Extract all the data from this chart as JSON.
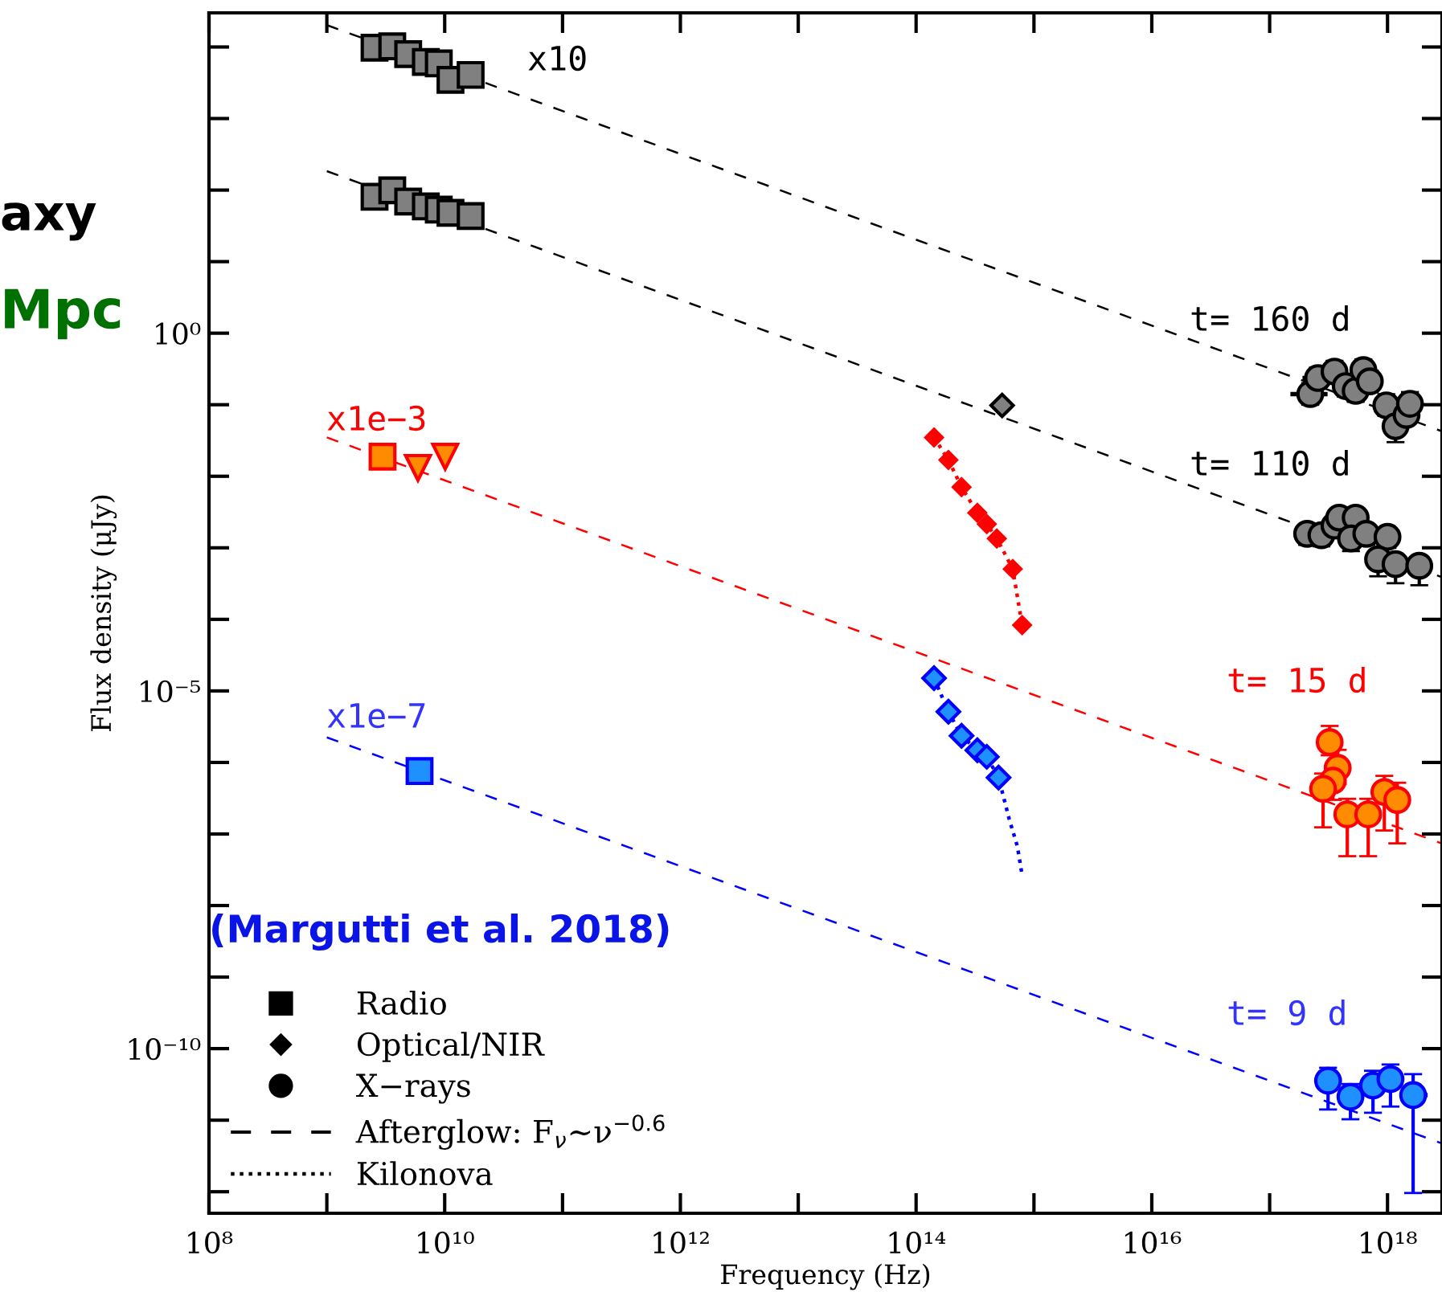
{
  "chart_data": {
    "type": "scatter",
    "xlabel": "Frequency (Hz)",
    "ylabel": "Flux density (μJy)",
    "log": "xy",
    "grid": false,
    "legend": "bottom left",
    "xlim": [
      100000000.0,
      2.9e+18
    ],
    "ylim": [
      5e-13,
      30000.0
    ],
    "xticks": [
      {
        "value": 100000000.0,
        "label": "10⁸"
      },
      {
        "value": 1000000000.0,
        "label": null
      },
      {
        "value": 10000000000.0,
        "label": "10¹⁰"
      },
      {
        "value": 100000000000.0,
        "label": null
      },
      {
        "value": 1000000000000.0,
        "label": "10¹²"
      },
      {
        "value": 10000000000000.0,
        "label": null
      },
      {
        "value": 100000000000000.0,
        "label": "10¹⁴"
      },
      {
        "value": 1000000000000000.0,
        "label": null
      },
      {
        "value": 1e+16,
        "label": "10¹⁶"
      },
      {
        "value": 1e+17,
        "label": null
      },
      {
        "value": 1e+18,
        "label": "10¹⁸"
      }
    ],
    "yticks": [
      {
        "value": 1e-12,
        "label": null
      },
      {
        "value": 1e-11,
        "label": null
      },
      {
        "value": 1e-10,
        "label": "10⁻¹⁰"
      },
      {
        "value": 1e-09,
        "label": null
      },
      {
        "value": 1e-08,
        "label": null
      },
      {
        "value": 1e-07,
        "label": null
      },
      {
        "value": 1e-06,
        "label": null
      },
      {
        "value": 1e-05,
        "label": "10⁻⁵"
      },
      {
        "value": 0.0001,
        "label": null
      },
      {
        "value": 0.001,
        "label": null
      },
      {
        "value": 0.01,
        "label": null
      },
      {
        "value": 0.1,
        "label": null
      },
      {
        "value": 1,
        "label": "10⁰"
      },
      {
        "value": 10,
        "label": null
      },
      {
        "value": 100,
        "label": null
      },
      {
        "value": 1000,
        "label": null
      },
      {
        "value": 10000.0,
        "label": null
      }
    ],
    "series": [
      {
        "type": "line",
        "line_style": "dashed",
        "color": "#000000",
        "x": [
          1000000000.0,
          2.9e+18
        ],
        "values": [
          20200.0,
          0.0426
        ]
      },
      {
        "type": "line",
        "line_style": "dashed",
        "color": "#000000",
        "x": [
          1000000000.0,
          2.9e+18
        ],
        "values": [
          184,
          0.000388
        ]
      },
      {
        "type": "line",
        "line_style": "dashed",
        "color": "#ff0000",
        "x": [
          1000000000.0,
          2.9e+18
        ],
        "values": [
          0.0349,
          7.36e-08
        ]
      },
      {
        "type": "line",
        "line_style": "dashed",
        "color": "#0000ff",
        "x": [
          1000000000.0,
          2.9e+18
        ],
        "values": [
          2.24e-06,
          4.72e-12
        ]
      },
      {
        "marker": "square",
        "color": "#808080",
        "x": [
          2540000000.0,
          3590000000.0,
          4900000000.0,
          6920000000.0,
          8910000000.0,
          11200000000.0,
          16600000000.0
        ],
        "values": [
          9770.0,
          10200.0,
          7940.0,
          6170.0,
          5890.0,
          3470.0,
          4070.0
        ]
      },
      {
        "marker": "square",
        "color": "#808080",
        "x": [
          2540000000.0,
          3590000000.0,
          4900000000.0,
          6920000000.0,
          8910000000.0,
          11200000000.0,
          16600000000.0
        ],
        "values": [
          80.5,
          99.1,
          69.0,
          59.0,
          53.2,
          48.1,
          43.4
        ]
      },
      {
        "marker": "diamond",
        "color": "#808080",
        "x": [
          537000000000000.0
        ],
        "values": [
          0.0977
        ]
      },
      {
        "marker": "circle",
        "color": "#808080",
        "x": [
          2.21e+17,
          2.57e+17,
          3.55e+17,
          4.42e+17,
          5.37e+17,
          6.24e+17,
          7.08e+17,
          9.77e+17,
          1.17e+18,
          1.45e+18,
          1.55e+18
        ],
        "values": [
          0.141,
          0.236,
          0.29,
          0.182,
          0.156,
          0.305,
          0.212,
          0.098,
          0.05,
          0.072,
          0.103
        ],
        "errors": [
          [
            0.1,
            0.2
          ],
          [
            0.17,
            0.33
          ],
          [
            0.21,
            0.41
          ],
          [
            0.13,
            0.26
          ],
          [
            0.11,
            0.22
          ],
          [
            0.22,
            0.43
          ],
          [
            0.15,
            0.3
          ],
          [
            0.07,
            0.14
          ],
          [
            0.03,
            0.07
          ],
          null,
          [
            0.07,
            0.15
          ]
        ],
        "xerrors": [
          [
            1.5e+17,
            3.1e+17
          ],
          [
            1.9e+17,
            3.4e+17
          ],
          null,
          null,
          null,
          null,
          null,
          null,
          null,
          [
            1.2e+18,
            1.9e+18
          ],
          null
        ]
      },
      {
        "marker": "circle",
        "color": "#808080",
        "x": [
          2.08e+17,
          2.75e+17,
          3.55e+17,
          3.89e+17,
          5.37e+17,
          4.9e+17,
          6.61e+17,
          1e+18,
          8.32e+17,
          1.17e+18,
          1.86e+18
        ],
        "values": [
          0.00157,
          0.0015,
          0.00204,
          0.00264,
          0.00264,
          0.00135,
          0.00157,
          0.00142,
          0.00069,
          0.00059,
          0.000561
        ],
        "errors": [
          [
            0.0011,
            0.0021
          ],
          [
            0.00105,
            0.002
          ],
          [
            0.00145,
            0.0027
          ],
          [
            0.0019,
            0.0034
          ],
          [
            0.0019,
            0.0034
          ],
          [
            0.0009,
            0.0018
          ],
          [
            0.0011,
            0.0021
          ],
          [
            0.001,
            0.0019
          ],
          [
            0.0004,
            0.0009
          ],
          [
            0.00032,
            0.0008
          ],
          [
            0.0003,
            0.00075
          ]
        ]
      },
      {
        "type": "line",
        "line_style": "dotted",
        "marker": "diamond",
        "color": "#ff0000",
        "x": [
          142000000000000.0,
          188000000000000.0,
          243000000000000.0,
          331000000000000.0,
          398000000000000.0,
          484000000000000.0,
          661000000000000.0,
          794000000000000.0
        ],
        "values": [
          0.0349,
          0.0169,
          0.00705,
          0.00308,
          0.00215,
          0.00135,
          0.000506,
          8.3e-05
        ]
      },
      {
        "marker": "square",
        "color": "#ff8c00",
        "x": [
          2970000000.0
        ],
        "values": [
          0.0188
        ]
      },
      {
        "marker": "triangle",
        "color": "#ff8c00",
        "x": [
          5930000000.0,
          10100000000.0
        ],
        "values": [
          0.0131,
          0.0188
        ]
      },
      {
        "marker": "circle",
        "color": "#ff8c00",
        "x": [
          3.23e+17,
          3.78e+17,
          3.44e+17,
          2.84e+17,
          4.56e+17,
          6.86e+17,
          9.4e+17,
          1.21e+18
        ],
        "values": [
          1.92e-06,
          8.39e-07,
          5.55e-07,
          4.29e-07,
          1.88e-07,
          1.88e-07,
          3.86e-07,
          2.99e-07
        ],
        "errors": [
          [
            1.26e-06,
            3.24e-06
          ],
          [
            5e-07,
            1.5e-06
          ],
          [
            3e-07,
            9e-07
          ],
          [
            1.24e-07,
            7e-07
          ],
          [
            4.9e-08,
            3.1e-07
          ],
          [
            4.9e-08,
            3.1e-07
          ],
          [
            1.12e-07,
            6.5e-07
          ],
          [
            7.4e-08,
            5.2e-07
          ]
        ]
      },
      {
        "type": "line",
        "line_style": "dotted",
        "color": "#0000ff",
        "x": [
          142000000000000.0,
          188000000000000.0,
          243000000000000.0,
          331000000000000.0,
          398000000000000.0,
          501000000000000.0,
          617000000000000.0,
          724000000000000.0,
          794000000000000.0
        ],
        "values": [
          1.51e-05,
          5.12e-06,
          2.36e-06,
          1.48e-06,
          1.2e-06,
          6.15e-07,
          1.61e-07,
          6.68e-08,
          2.64e-08
        ]
      },
      {
        "marker": "diamond",
        "color": "#1e90ff",
        "x": [
          142000000000000.0,
          188000000000000.0,
          243000000000000.0,
          331000000000000.0,
          398000000000000.0,
          501000000000000.0
        ],
        "values": [
          1.51e-05,
          5.12e-06,
          2.36e-06,
          1.48e-06,
          1.2e-06,
          6.15e-07
        ]
      },
      {
        "marker": "square",
        "color": "#1e90ff",
        "x": [
          6120000000.0
        ],
        "values": [
          7.57e-07
        ]
      },
      {
        "marker": "circle",
        "color": "#1e90ff",
        "x": [
          3.13e+17,
          4.85e+17,
          7.53e+17,
          1.06e+18,
          1.65e+18
        ],
        "values": [
          3.56e-11,
          2.12e-11,
          3.05e-11,
          3.75e-11,
          2.24e-11
        ],
        "errors": [
          [
            1.41e-11,
            5.4e-11
          ],
          [
            1.03e-11,
            3.2e-11
          ],
          [
            1.27e-11,
            4.9e-11
          ],
          [
            1.55e-11,
            6e-11
          ],
          [
            9.6e-13,
            4.4e-11
          ]
        ],
        "xerrors": [
          null,
          null,
          null,
          null,
          [
            1.37e+18,
            2.19e+18
          ]
        ]
      },
      {
        "marker": "square",
        "color": "#000000",
        "name": "Radio"
      },
      {
        "marker": "diamond",
        "color": "#000000",
        "name": "Optical/NIR"
      },
      {
        "marker": "circle",
        "color": "#000000",
        "name": "X−rays"
      },
      {
        "type": "line",
        "line_style": "dashed",
        "color": "#000000",
        "name": "Afterglow: F$_{ν}$∼ν$^{−0.6}$"
      },
      {
        "type": "line",
        "line_style": "dotted",
        "color": "#000000",
        "name": "Kilonova"
      }
    ],
    "annotations": [
      "x10",
      "t= 160 d",
      "t= 110 d",
      "x1e−3",
      "t= 15 d",
      "x1e−7",
      "t= 9 d",
      "(Margutti et al. 2018)",
      "axy",
      "Mpc"
    ]
  }
}
